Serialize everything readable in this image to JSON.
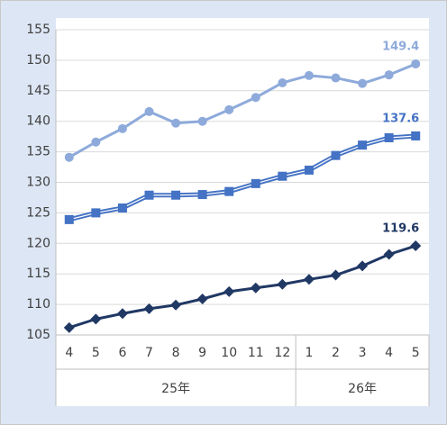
{
  "chart_data": {
    "type": "line",
    "categories": [
      "4",
      "5",
      "6",
      "7",
      "8",
      "9",
      "10",
      "11",
      "12",
      "1",
      "2",
      "3",
      "4",
      "5"
    ],
    "groups": [
      {
        "label": "25年",
        "count": 9
      },
      {
        "label": "26年",
        "count": 5
      }
    ],
    "series": [
      {
        "color": "#8eaadb",
        "marker": "circle",
        "values": [
          134.1,
          136.6,
          138.8,
          141.6,
          139.7,
          140.0,
          141.9,
          143.9,
          146.3,
          147.5,
          147.1,
          146.2,
          147.6,
          149.4
        ]
      },
      {
        "color": "#4472c4",
        "marker": "square",
        "double": true,
        "values": [
          123.9,
          125.0,
          125.8,
          127.9,
          127.9,
          128.0,
          128.5,
          129.8,
          131.0,
          132.0,
          134.4,
          136.1,
          137.3,
          137.6
        ]
      },
      {
        "color": "#203864",
        "marker": "diamond",
        "values": [
          106.2,
          107.6,
          108.5,
          109.3,
          109.9,
          110.9,
          112.1,
          112.7,
          113.3,
          114.1,
          114.8,
          116.3,
          118.2,
          119.6
        ]
      }
    ],
    "ylim": [
      105,
      155
    ],
    "yticks": [
      105,
      110,
      115,
      120,
      125,
      130,
      135,
      140,
      145,
      150,
      155
    ],
    "grid": true
  }
}
